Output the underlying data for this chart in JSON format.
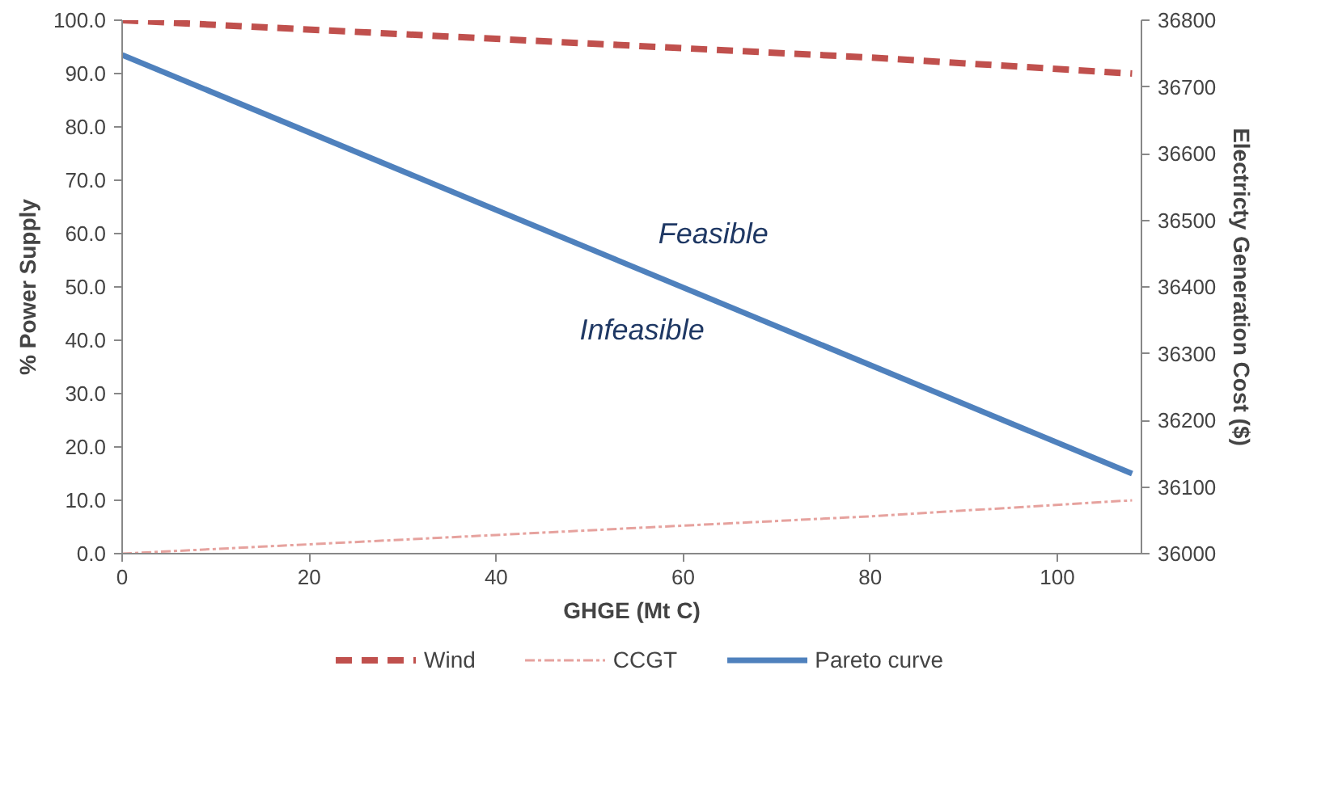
{
  "chart_data": {
    "type": "line",
    "xlabel": "GHGE (Mt C)",
    "ylabel": "% Power Supply",
    "y2label": "Electricty Generation Cost ($)",
    "xlim": [
      0,
      109
    ],
    "xticks": [
      0,
      20,
      40,
      60,
      80,
      100
    ],
    "ylim": [
      0,
      100
    ],
    "yticks": [
      {
        "value": 0,
        "label": "0.0"
      },
      {
        "value": 10,
        "label": "10.0"
      },
      {
        "value": 20,
        "label": "20.0"
      },
      {
        "value": 30,
        "label": "30.0"
      },
      {
        "value": 40,
        "label": "40.0"
      },
      {
        "value": 50,
        "label": "50.0"
      },
      {
        "value": 60,
        "label": "60.0"
      },
      {
        "value": 70,
        "label": "70.0"
      },
      {
        "value": 80,
        "label": "80.0"
      },
      {
        "value": 90,
        "label": "90.0"
      },
      {
        "value": 100,
        "label": "100.0"
      }
    ],
    "y2lim": [
      36000,
      36800
    ],
    "y2ticks": [
      36000,
      36100,
      36200,
      36300,
      36400,
      36500,
      36600,
      36700,
      36800
    ],
    "series": [
      {
        "name": "Wind",
        "color": "#c0504d",
        "line_style": "dashed",
        "x": [
          0,
          40,
          80,
          108
        ],
        "values": [
          100,
          96.5,
          93,
          90
        ]
      },
      {
        "name": "CCGT",
        "color": "#e6a29e",
        "line_style": "dashdot",
        "x": [
          0,
          40,
          80,
          108
        ],
        "values": [
          0,
          3.5,
          7,
          10
        ]
      },
      {
        "name": "Pareto curve",
        "color": "#4f81bd",
        "line_style": "solid",
        "axis": "y2",
        "x": [
          0,
          108
        ],
        "values": [
          36748,
          36120
        ]
      }
    ],
    "annotations": [
      "Feasible",
      "Infeasible"
    ],
    "grid": false,
    "legend": "bottom",
    "marker": "none"
  }
}
